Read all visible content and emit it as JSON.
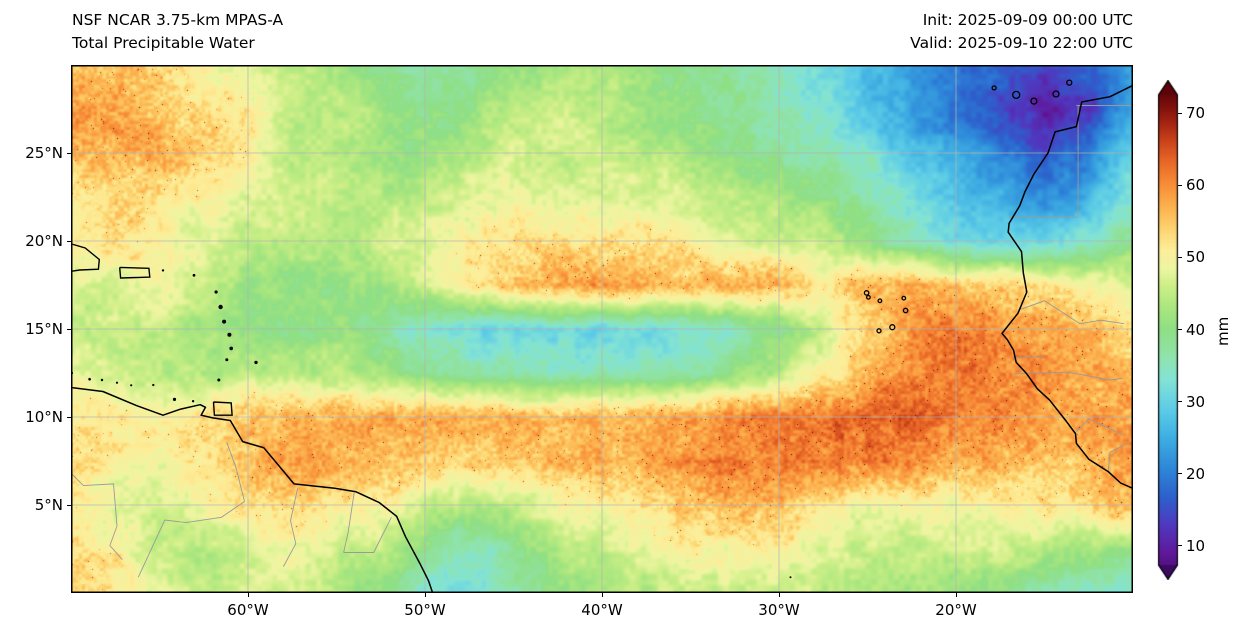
{
  "header": {
    "title_line1": "NSF NCAR 3.75-km MPAS-A",
    "title_line2": "Total Precipitable Water",
    "init_line": "Init: 2025-09-09 00:00 UTC",
    "valid_line": "Valid: 2025-09-10 22:00 UTC"
  },
  "chart_data": {
    "type": "heatmap",
    "title": "Total Precipitable Water",
    "units": "mm",
    "extent": {
      "lon_min": -70,
      "lon_max": -10,
      "lat_min": 0,
      "lat_max": 30
    },
    "x_ticks": [
      {
        "value": -60,
        "label": "60°W"
      },
      {
        "value": -50,
        "label": "50°W"
      },
      {
        "value": -40,
        "label": "40°W"
      },
      {
        "value": -30,
        "label": "30°W"
      },
      {
        "value": -20,
        "label": "20°W"
      }
    ],
    "y_ticks": [
      {
        "value": 25,
        "label": "25°N"
      },
      {
        "value": 20,
        "label": "20°N"
      },
      {
        "value": 15,
        "label": "15°N"
      },
      {
        "value": 10,
        "label": "10°N"
      },
      {
        "value": 5,
        "label": "5°N"
      }
    ],
    "grid": {
      "lon_start": -70,
      "lon_step": 2.5,
      "ncols": 25,
      "lat_start": 30,
      "lat_step": -2.5,
      "nrows": 13,
      "values": [
        [
          55,
          55,
          53,
          50,
          48,
          45,
          42,
          39,
          37,
          38,
          40,
          42,
          42,
          41,
          39,
          37,
          34,
          30,
          26,
          22,
          19,
          16,
          13,
          16,
          24
        ],
        [
          58,
          57,
          55,
          52,
          50,
          46,
          44,
          42,
          40,
          42,
          44,
          45,
          44,
          42,
          40,
          38,
          36,
          33,
          28,
          24,
          20,
          15,
          10,
          12,
          24
        ],
        [
          55,
          57,
          58,
          55,
          50,
          46,
          44,
          43,
          42,
          44,
          46,
          46,
          45,
          44,
          42,
          40,
          38,
          36,
          33,
          28,
          24,
          20,
          16,
          20,
          30
        ],
        [
          52,
          54,
          52,
          50,
          48,
          46,
          45,
          44,
          45,
          47,
          48,
          48,
          48,
          47,
          46,
          45,
          43,
          40,
          36,
          32,
          28,
          25,
          22,
          26,
          34
        ],
        [
          50,
          52,
          50,
          48,
          46,
          45,
          44,
          45,
          47,
          50,
          52,
          53,
          52,
          52,
          50,
          48,
          46,
          44,
          40,
          36,
          32,
          30,
          30,
          34,
          40
        ],
        [
          46,
          48,
          50,
          46,
          42,
          41,
          40,
          42,
          46,
          52,
          56,
          58,
          58,
          57,
          58,
          58,
          56,
          52,
          56,
          58,
          56,
          54,
          52,
          50,
          48
        ],
        [
          44,
          46,
          44,
          42,
          40,
          40,
          40,
          38,
          34,
          30,
          30,
          32,
          30,
          32,
          34,
          36,
          38,
          45,
          55,
          60,
          62,
          60,
          58,
          56,
          52
        ],
        [
          48,
          46,
          44,
          42,
          44,
          45,
          44,
          42,
          40,
          38,
          36,
          34,
          36,
          34,
          36,
          40,
          44,
          50,
          56,
          60,
          62,
          62,
          60,
          58,
          55
        ],
        [
          50,
          52,
          50,
          52,
          55,
          56,
          57,
          58,
          58,
          58,
          57,
          56,
          56,
          57,
          58,
          60,
          62,
          63,
          64,
          63,
          62,
          60,
          60,
          58,
          56
        ],
        [
          52,
          50,
          48,
          52,
          56,
          58,
          58,
          57,
          55,
          54,
          55,
          56,
          57,
          58,
          60,
          62,
          62,
          62,
          62,
          60,
          58,
          56,
          55,
          56,
          58
        ],
        [
          50,
          48,
          46,
          48,
          52,
          54,
          52,
          50,
          46,
          44,
          46,
          48,
          50,
          52,
          54,
          55,
          54,
          52,
          50,
          50,
          50,
          50,
          52,
          54,
          56
        ],
        [
          52,
          50,
          46,
          44,
          46,
          48,
          46,
          44,
          38,
          36,
          40,
          44,
          46,
          48,
          50,
          50,
          50,
          48,
          46,
          46,
          46,
          46,
          44,
          42,
          40
        ],
        [
          54,
          52,
          48,
          46,
          48,
          46,
          44,
          40,
          34,
          32,
          36,
          40,
          42,
          44,
          46,
          46,
          46,
          45,
          44,
          43,
          42,
          40,
          36,
          34,
          33
        ]
      ]
    },
    "colormap": {
      "vmin": 5,
      "vmax": 73,
      "stops": [
        [
          5,
          "#3c0a63"
        ],
        [
          9,
          "#61189b"
        ],
        [
          13,
          "#4f3ac0"
        ],
        [
          17,
          "#2c63cd"
        ],
        [
          21,
          "#2f8ada"
        ],
        [
          25,
          "#3fafe3"
        ],
        [
          29,
          "#5ecde7"
        ],
        [
          33,
          "#83e3d6"
        ],
        [
          36,
          "#8fe4af"
        ],
        [
          40,
          "#8fdf85"
        ],
        [
          43,
          "#abe77f"
        ],
        [
          46,
          "#cdef88"
        ],
        [
          48.5,
          "#eef6a2"
        ],
        [
          51,
          "#fdee9a"
        ],
        [
          53.5,
          "#fdd977"
        ],
        [
          56,
          "#fdbd58"
        ],
        [
          58.5,
          "#fba143"
        ],
        [
          61,
          "#f58334"
        ],
        [
          63.5,
          "#e66526"
        ],
        [
          66,
          "#cc451c"
        ],
        [
          68.5,
          "#a82613"
        ],
        [
          71,
          "#7d100d"
        ],
        [
          73,
          "#5e0409"
        ]
      ]
    },
    "colorbar": {
      "ticks": [
        10,
        20,
        30,
        40,
        50,
        60,
        70
      ],
      "label": "mm",
      "vmin": 7.5,
      "vmax": 72.5,
      "extend": "both"
    },
    "overlays": {
      "gridline_lats": [
        5,
        10,
        15,
        20,
        25
      ],
      "gridline_lons": [
        -60,
        -50,
        -40,
        -30,
        -20
      ],
      "gridline_color": "#b3b3b3",
      "coast_color": "#000000",
      "border_color": "#9a9a9a",
      "coastlines": [
        [
          [
            -9.6,
            30.2
          ],
          [
            -9.9,
            28.9
          ],
          [
            -11.3,
            28.2
          ],
          [
            -12.9,
            27.9
          ],
          [
            -13.2,
            26.5
          ],
          [
            -14.4,
            26.2
          ],
          [
            -14.8,
            25.0
          ],
          [
            -15.6,
            23.8
          ],
          [
            -16.1,
            22.8
          ],
          [
            -16.4,
            22.0
          ],
          [
            -17.0,
            21.0
          ],
          [
            -17.05,
            20.5
          ],
          [
            -16.3,
            19.4
          ],
          [
            -16.2,
            18.2
          ],
          [
            -16.0,
            17.1
          ],
          [
            -16.5,
            15.9
          ],
          [
            -17.4,
            14.75
          ],
          [
            -17.1,
            14.4
          ],
          [
            -16.75,
            13.8
          ],
          [
            -16.6,
            13.1
          ],
          [
            -16.0,
            12.45
          ],
          [
            -15.4,
            11.6
          ],
          [
            -14.7,
            10.95
          ],
          [
            -13.8,
            9.8
          ],
          [
            -13.25,
            9.05
          ],
          [
            -13.2,
            8.5
          ],
          [
            -12.5,
            7.6
          ],
          [
            -11.4,
            6.9
          ],
          [
            -10.7,
            6.25
          ],
          [
            -9.8,
            5.85
          ]
        ],
        [
          [
            -70.2,
            11.7
          ],
          [
            -68.2,
            11.45
          ],
          [
            -66.3,
            10.65
          ],
          [
            -64.8,
            10.1
          ],
          [
            -63.8,
            10.45
          ],
          [
            -62.7,
            10.7
          ],
          [
            -62.4,
            10.55
          ],
          [
            -62.65,
            10.1
          ],
          [
            -62.0,
            9.95
          ],
          [
            -61.0,
            9.8
          ],
          [
            -60.3,
            8.6
          ],
          [
            -59.1,
            8.25
          ],
          [
            -57.4,
            6.2
          ],
          [
            -55.1,
            5.95
          ],
          [
            -53.9,
            5.75
          ],
          [
            -52.6,
            5.15
          ],
          [
            -51.6,
            4.35
          ],
          [
            -51.1,
            3.2
          ],
          [
            -50.3,
            1.7
          ],
          [
            -49.8,
            0.7
          ],
          [
            -49.5,
            -0.2
          ]
        ]
      ],
      "island_polys": [
        [
          [
            -67.25,
            18.5
          ],
          [
            -65.6,
            18.45
          ],
          [
            -65.55,
            17.95
          ],
          [
            -67.2,
            17.9
          ],
          [
            -67.25,
            18.5
          ]
        ],
        [
          [
            -61.95,
            10.85
          ],
          [
            -60.95,
            10.8
          ],
          [
            -60.9,
            10.1
          ],
          [
            -61.9,
            10.1
          ],
          [
            -61.95,
            10.85
          ]
        ],
        [
          [
            -70.2,
            19.9
          ],
          [
            -69.2,
            19.6
          ],
          [
            -68.4,
            18.95
          ],
          [
            -68.45,
            18.4
          ],
          [
            -69.5,
            18.35
          ],
          [
            -70.2,
            18.25
          ]
        ]
      ],
      "island_circles": [
        [
          -17.85,
          28.7,
          2
        ],
        [
          -16.6,
          28.3,
          3.5
        ],
        [
          -15.6,
          27.95,
          3
        ],
        [
          -14.35,
          28.35,
          3
        ],
        [
          -13.6,
          29.0,
          2.5
        ],
        [
          -25.05,
          17.05,
          2.2
        ],
        [
          -24.95,
          16.8,
          1.8
        ],
        [
          -24.3,
          16.6,
          1.8
        ],
        [
          -22.95,
          16.75,
          1.8
        ],
        [
          -22.85,
          16.05,
          2.2
        ],
        [
          -23.6,
          15.1,
          2.5
        ],
        [
          -24.35,
          14.9,
          2
        ]
      ],
      "island_dots": [
        [
          -63.05,
          18.05,
          1.4
        ],
        [
          -61.8,
          17.1,
          1.6
        ],
        [
          -61.55,
          16.25,
          2.2
        ],
        [
          -61.35,
          15.42,
          2.0
        ],
        [
          -61.05,
          14.67,
          2.0
        ],
        [
          -60.95,
          13.9,
          1.8
        ],
        [
          -61.2,
          13.25,
          1.5
        ],
        [
          -59.55,
          13.1,
          1.7
        ],
        [
          -61.65,
          12.1,
          1.5
        ],
        [
          -64.8,
          18.33,
          1.2
        ],
        [
          -69.95,
          12.5,
          1.2
        ],
        [
          -68.95,
          12.15,
          1.3
        ],
        [
          -68.25,
          12.1,
          1.2
        ],
        [
          -67.4,
          11.95,
          1.1
        ],
        [
          -66.6,
          11.8,
          1.1
        ],
        [
          -65.35,
          11.82,
          1.1
        ],
        [
          -64.15,
          11.0,
          1.6
        ],
        [
          -63.1,
          10.9,
          1.2
        ],
        [
          -29.35,
          0.9,
          1.0
        ]
      ],
      "borders": [
        [
          [
            -13.2,
            27.7
          ],
          [
            -10,
            27.7
          ]
        ],
        [
          [
            -17.0,
            21.35
          ],
          [
            -13.1,
            21.35
          ],
          [
            -13.1,
            27.7
          ]
        ],
        [
          [
            -16.4,
            16.1
          ],
          [
            -15.0,
            16.6
          ],
          [
            -13.0,
            15.3
          ],
          [
            -11.8,
            15.5
          ],
          [
            -10.5,
            15.3
          ]
        ],
        [
          [
            -16.8,
            13.35
          ],
          [
            -15.0,
            13.45
          ]
        ],
        [
          [
            -16.7,
            12.45
          ],
          [
            -13.7,
            12.55
          ],
          [
            -11.3,
            12.1
          ],
          [
            -10.6,
            12.2
          ]
        ],
        [
          [
            -13.3,
            9.05
          ],
          [
            -12.5,
            9.9
          ],
          [
            -10.6,
            9.0
          ]
        ],
        [
          [
            -11.4,
            6.9
          ],
          [
            -11.3,
            8.0
          ],
          [
            -10.3,
            8.5
          ]
        ],
        [
          [
            -61.2,
            8.55
          ],
          [
            -60.7,
            7.2
          ],
          [
            -60.2,
            5.2
          ]
        ],
        [
          [
            -57.2,
            5.95
          ],
          [
            -57.6,
            4.1
          ],
          [
            -57.3,
            2.8
          ],
          [
            -58.0,
            1.5
          ]
        ],
        [
          [
            -54.0,
            5.7
          ],
          [
            -54.35,
            3.4
          ],
          [
            -54.6,
            2.3
          ]
        ],
        [
          [
            -51.9,
            4.3
          ],
          [
            -52.9,
            2.3
          ],
          [
            -54.6,
            2.3
          ]
        ],
        [
          [
            -60.2,
            5.2
          ],
          [
            -61.5,
            4.3
          ],
          [
            -63.5,
            4.0
          ],
          [
            -64.7,
            4.15
          ],
          [
            -66.2,
            0.9
          ]
        ],
        [
          [
            -70.2,
            7.0
          ],
          [
            -69.3,
            6.1
          ],
          [
            -67.6,
            6.2
          ],
          [
            -67.4,
            3.8
          ],
          [
            -67.8,
            2.7
          ],
          [
            -67.1,
            1.9
          ]
        ]
      ]
    }
  }
}
